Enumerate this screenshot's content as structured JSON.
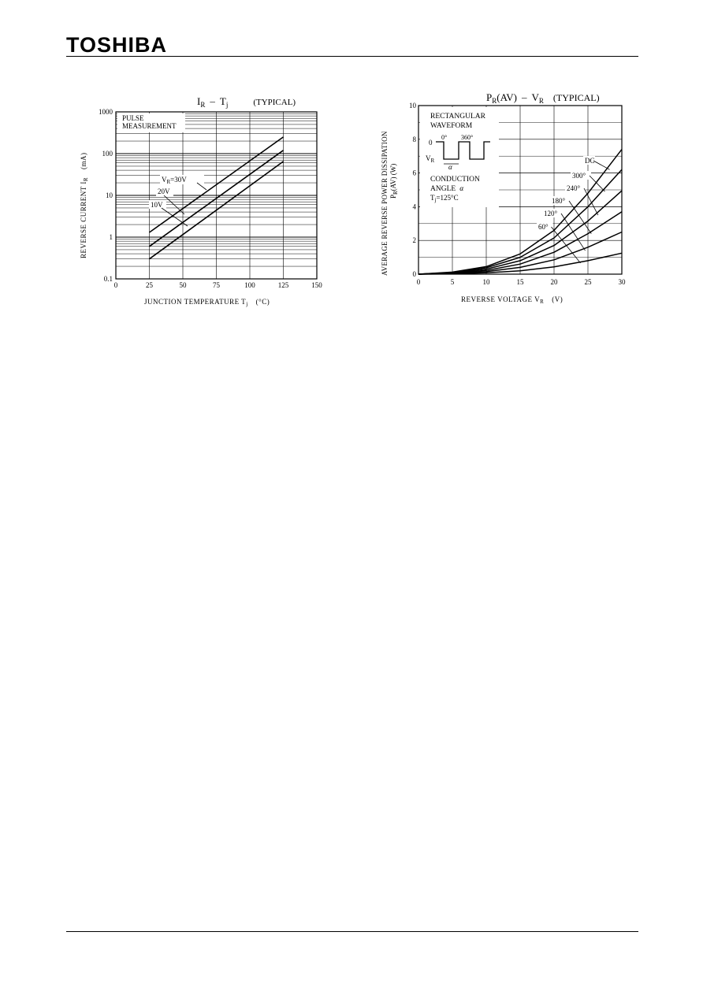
{
  "header": {
    "brand": "TOSHIBA"
  },
  "chart_data": [
    {
      "type": "line",
      "title_main": "I",
      "title_main_sub": "R",
      "title_sep": "–",
      "title_var": "T",
      "title_var_sub": "j",
      "title_note": "(TYPICAL)",
      "xlabel": "JUNCTION TEMPERATURE   T",
      "xlabel_sub": "j",
      "xlabel_unit": "(°C)",
      "ylabel": "REVERSE CURRENT   I",
      "ylabel_sub": "R",
      "ylabel_unit": "(mA)",
      "xlim": [
        0,
        150
      ],
      "ylim": [
        0.1,
        1000
      ],
      "y_scale": "log",
      "x_ticks": [
        "0",
        "25",
        "50",
        "75",
        "100",
        "125",
        "150"
      ],
      "y_ticks": [
        "0.1",
        "1",
        "10",
        "100",
        "1000"
      ],
      "box_line1": "PULSE",
      "box_line2": "MEASUREMENT",
      "series": [
        {
          "name": "V",
          "name_sub": "R",
          "name_suffix": "=30V",
          "x": [
            25,
            125
          ],
          "y": [
            1.3,
            250
          ]
        },
        {
          "name": "20V",
          "x": [
            25,
            125
          ],
          "y": [
            0.6,
            120
          ]
        },
        {
          "name": "10V",
          "x": [
            25,
            125
          ],
          "y": [
            0.3,
            65
          ]
        }
      ]
    },
    {
      "type": "line",
      "title_main": "P",
      "title_main_sub": "R",
      "title_main_suffix": "(AV)",
      "title_sep": "–",
      "title_var": "V",
      "title_var_sub": "R",
      "title_note": "(TYPICAL)",
      "xlabel": "REVERSE VOLTAGE   V",
      "xlabel_sub": "R",
      "xlabel_unit": "(V)",
      "ylabel_line1": "AVERAGE REVERSE POWER DISSIPATION",
      "ylabel_line2": "P",
      "ylabel_line2_sub": "R",
      "ylabel_line2_suffix": "(AV)   (W)",
      "xlim": [
        0,
        30
      ],
      "ylim": [
        0,
        10
      ],
      "x_ticks": [
        "0",
        "5",
        "10",
        "15",
        "20",
        "25",
        "30"
      ],
      "y_ticks": [
        "0",
        "2",
        "4",
        "6",
        "8",
        "10"
      ],
      "inset": {
        "line1": "RECTANGULAR",
        "line2": "WAVEFORM",
        "zero_label": "0",
        "deg0": "0°",
        "deg360": "360°",
        "vr_label": "V",
        "vr_sub": "R",
        "alpha_label": "α",
        "cond1": "CONDUCTION",
        "cond2": "ANGLE",
        "cond_alpha": "α",
        "tj_label": "T",
        "tj_sub": "j",
        "tj_value": "=125°C"
      },
      "series": [
        {
          "name": "DC",
          "x": [
            0,
            5,
            10,
            15,
            20,
            25,
            30
          ],
          "y": [
            0,
            0.12,
            0.45,
            1.2,
            2.6,
            4.8,
            7.4
          ]
        },
        {
          "name": "300°",
          "x": [
            0,
            5,
            10,
            15,
            20,
            25,
            30
          ],
          "y": [
            0,
            0.1,
            0.38,
            1.0,
            2.15,
            4.0,
            6.2
          ]
        },
        {
          "name": "240°",
          "x": [
            0,
            5,
            10,
            15,
            20,
            25,
            30
          ],
          "y": [
            0,
            0.08,
            0.3,
            0.8,
            1.7,
            3.15,
            4.95
          ]
        },
        {
          "name": "180°",
          "x": [
            0,
            5,
            10,
            15,
            20,
            25,
            30
          ],
          "y": [
            0,
            0.06,
            0.22,
            0.6,
            1.3,
            2.4,
            3.7
          ]
        },
        {
          "name": "120°",
          "x": [
            0,
            5,
            10,
            15,
            20,
            25,
            30
          ],
          "y": [
            0,
            0.04,
            0.15,
            0.4,
            0.85,
            1.6,
            2.5
          ]
        },
        {
          "name": "60°",
          "x": [
            0,
            5,
            10,
            15,
            20,
            25,
            30
          ],
          "y": [
            0,
            0.02,
            0.08,
            0.2,
            0.43,
            0.8,
            1.25
          ]
        }
      ]
    }
  ]
}
